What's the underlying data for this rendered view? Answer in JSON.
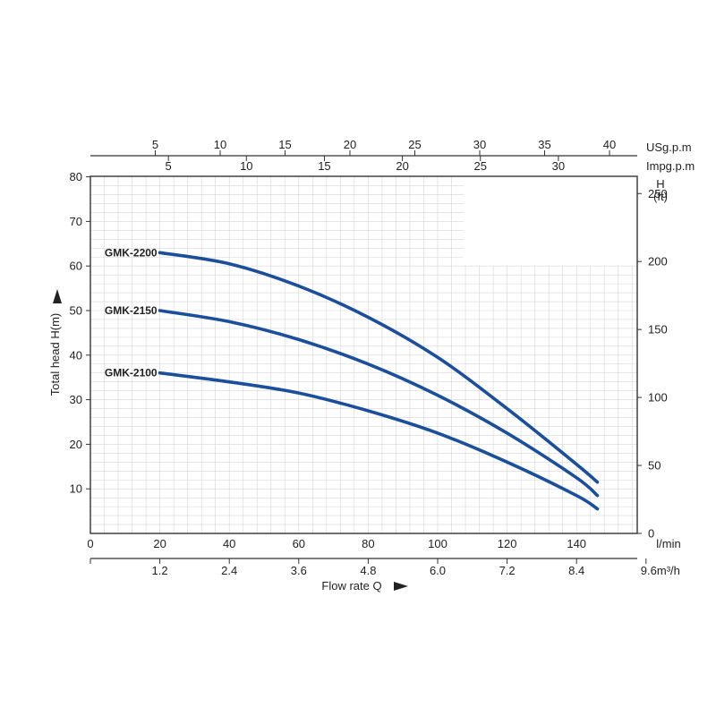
{
  "chart_data": {
    "type": "line",
    "x_unit": "l/min",
    "xlim": [
      0,
      160
    ],
    "x_ticks": [
      0,
      20,
      40,
      60,
      80,
      100,
      120,
      140
    ],
    "x_unit2": "m³/h",
    "x_ticks2": [
      "1.2",
      "2.4",
      "3.6",
      "4.8",
      "6.0",
      "7.2",
      "8.4",
      "9.6"
    ],
    "x_ticks2_values": [
      1.2,
      2.4,
      3.6,
      4.8,
      6.0,
      7.2,
      8.4,
      9.6
    ],
    "xlabel": "Flow rate Q",
    "ylabel": "Total  head H(m)",
    "ylim": [
      0,
      80
    ],
    "y_ticks": [
      10,
      20,
      30,
      40,
      50,
      60,
      70,
      80
    ],
    "y2_title_line1": "H",
    "y2_title_line2": "(ft)",
    "y2_ticks": [
      0,
      50,
      100,
      150,
      200,
      250
    ],
    "top1_unit": "USg.p.m",
    "top1_ticks": [
      5,
      10,
      15,
      20,
      25,
      30,
      35,
      40
    ],
    "top2_unit": "Impg.p.m",
    "top2_ticks": [
      5,
      10,
      15,
      20,
      25,
      30
    ],
    "grid": true,
    "series": [
      {
        "name": "GMK-2200",
        "color": "#1b4f9c",
        "x": [
          20,
          40,
          60,
          80,
          100,
          120,
          140,
          146
        ],
        "y": [
          63,
          60.5,
          55.5,
          48.5,
          39.5,
          28,
          15.5,
          11.5
        ]
      },
      {
        "name": "GMK-2150",
        "color": "#1b4f9c",
        "x": [
          20,
          40,
          60,
          80,
          100,
          120,
          140,
          146
        ],
        "y": [
          50,
          47.5,
          43.5,
          38,
          31,
          22.5,
          12.5,
          8.5
        ]
      },
      {
        "name": "GMK-2100",
        "color": "#1b4f9c",
        "x": [
          20,
          40,
          60,
          80,
          100,
          120,
          140,
          146
        ],
        "y": [
          36,
          34,
          31.5,
          27.5,
          22.5,
          16,
          8.5,
          5.5
        ]
      }
    ]
  }
}
